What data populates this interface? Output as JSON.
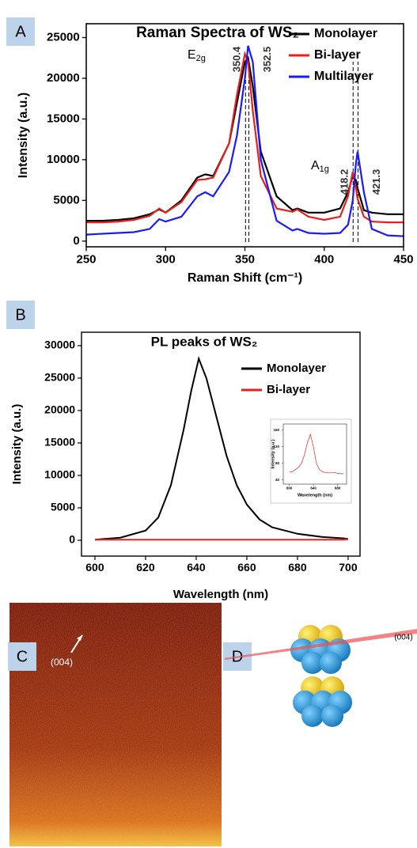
{
  "chart_data": [
    {
      "type": "line",
      "panel": "A",
      "title": "Raman Spectra of WS₂",
      "x_label": "Raman Shift (cm⁻¹)",
      "y_label": "Intensity (a.u.)",
      "x": [
        250,
        260,
        270,
        280,
        290,
        296,
        300,
        310,
        320,
        325,
        330,
        340,
        345,
        350,
        352,
        355,
        360,
        370,
        380,
        383,
        390,
        400,
        410,
        415,
        418,
        420,
        421,
        425,
        430,
        440,
        450
      ],
      "series": [
        {
          "name": "Monolayer",
          "color": "#000000",
          "values": [
            2500,
            2500,
            2600,
            2800,
            3300,
            3900,
            3500,
            5000,
            7800,
            8200,
            8000,
            12000,
            17000,
            22000,
            22500,
            19000,
            11000,
            5500,
            3800,
            4000,
            3500,
            3500,
            4000,
            6000,
            8000,
            7500,
            6500,
            3800,
            3500,
            3300,
            3300
          ]
        },
        {
          "name": "Bi-layer",
          "color": "#e8201c",
          "values": [
            2300,
            2300,
            2400,
            2600,
            3100,
            4000,
            3500,
            4800,
            7500,
            7600,
            7800,
            12000,
            18000,
            23000,
            22000,
            16000,
            8000,
            4000,
            3600,
            3900,
            3000,
            2600,
            3000,
            5500,
            8500,
            6500,
            5200,
            3000,
            2400,
            2300,
            2300
          ]
        },
        {
          "name": "Multilayer",
          "color": "#1a1aff",
          "values": [
            800,
            900,
            1000,
            1100,
            1500,
            2700,
            2400,
            3000,
            5500,
            6000,
            5500,
            8500,
            13000,
            20000,
            24000,
            22000,
            10000,
            2500,
            1300,
            1500,
            1000,
            900,
            1000,
            2000,
            5000,
            9500,
            11000,
            6000,
            1500,
            700,
            600
          ]
        }
      ],
      "xlim": [
        250,
        450
      ],
      "ylim": [
        -700,
        26700
      ],
      "xticks": [
        250,
        300,
        350,
        400,
        450
      ],
      "yticks": [
        0,
        5000,
        10000,
        15000,
        20000,
        25000
      ],
      "peak_labels": [
        350.4,
        352.5,
        418.2,
        421.3
      ],
      "annotations": [
        {
          "text": "E",
          "sub": "2g"
        },
        {
          "text": "A",
          "sub": "1g"
        }
      ],
      "legend": "upper right"
    },
    {
      "type": "line",
      "panel": "B",
      "title": "PL peaks of WS₂",
      "x_label": "Wavelength (nm)",
      "y_label": "Intensity (a.u.)",
      "x": [
        600,
        610,
        620,
        625,
        630,
        635,
        638,
        641,
        644,
        648,
        652,
        656,
        660,
        665,
        670,
        680,
        690,
        698,
        700
      ],
      "series": [
        {
          "name": "Monolayer",
          "color": "#000000",
          "values": [
            100,
            400,
            1500,
            3500,
            8500,
            17000,
            23000,
            28000,
            25000,
            19000,
            13000,
            8500,
            5500,
            3200,
            2000,
            1000,
            500,
            300,
            200
          ]
        },
        {
          "name": "Bi-layer",
          "color": "#e8201c",
          "values": [
            100,
            100,
            100,
            100,
            100,
            100,
            100,
            100,
            100,
            100,
            100,
            100,
            100,
            100,
            100,
            100,
            100,
            100,
            150
          ]
        }
      ],
      "xlim": [
        594.7,
        704.7
      ],
      "ylim": [
        -2440,
        32070
      ],
      "xticks": [
        600,
        620,
        640,
        660,
        680,
        700
      ],
      "yticks": [
        0,
        5000,
        10000,
        15000,
        20000,
        25000,
        30000
      ],
      "legend": "upper right"
    },
    {
      "type": "line",
      "x_label": "Wavelength (nm)",
      "y_label": "Intensity (a.u.)",
      "x": [
        600,
        605,
        610,
        615,
        620,
        625,
        630,
        635,
        640,
        645,
        650,
        655,
        660,
        665,
        670,
        675,
        680,
        685,
        690
      ],
      "series": [
        {
          "color": "#e8201c",
          "values": [
            60,
            60,
            65,
            70,
            80,
            100,
            130,
            150,
            120,
            80,
            65,
            60,
            58,
            57,
            57,
            58,
            56,
            55,
            55
          ]
        }
      ],
      "xlim": [
        590,
        695
      ],
      "ylim": [
        30,
        175
      ],
      "xticks": [
        600,
        640,
        680
      ],
      "yticks": [
        40,
        80,
        120,
        160
      ]
    }
  ],
  "images": {
    "c_label": "C",
    "c_text": "(004)",
    "d_label": "D",
    "d_text": "(004)"
  }
}
